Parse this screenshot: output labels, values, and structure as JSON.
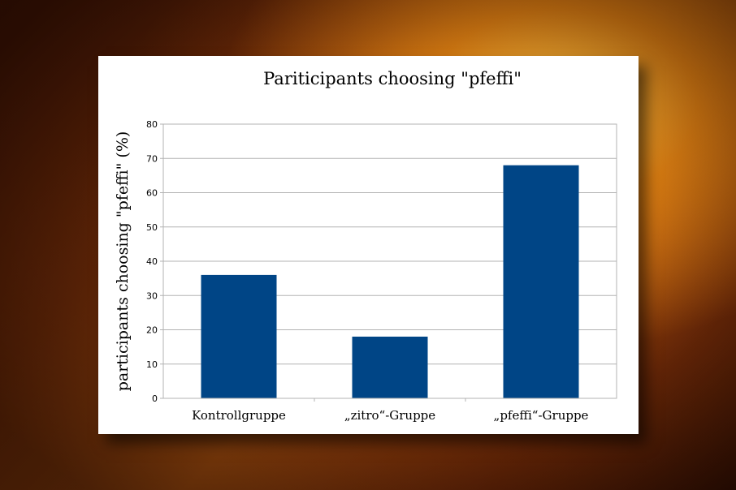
{
  "chart_data": {
    "type": "bar",
    "title": "Pariticipants choosing \"pfeffi\"",
    "xlabel": "",
    "ylabel": "participants choosing \"pfeffi\" (%)",
    "categories": [
      "Kontrollgruppe",
      "„zitro“-Gruppe",
      "„pfeffi“-Gruppe"
    ],
    "values": [
      36,
      18,
      68
    ],
    "ylim": [
      0,
      80
    ],
    "yticks": [
      0,
      10,
      20,
      30,
      40,
      50,
      60,
      70,
      80
    ],
    "grid": true,
    "bar_color": "#004586"
  }
}
